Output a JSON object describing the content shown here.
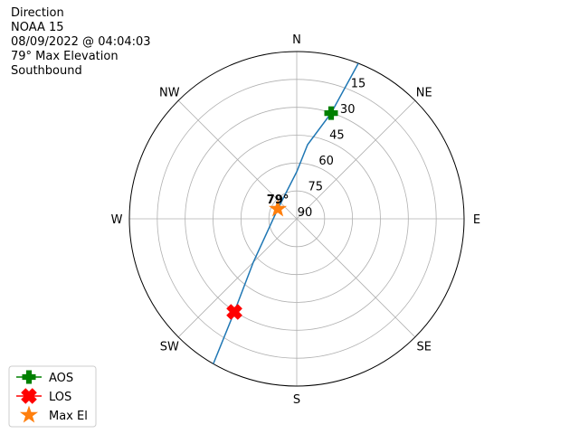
{
  "chart_data": {
    "type": "polar",
    "title": [
      "Direction",
      "NOAA 15",
      "08/09/2022 @ 04:04:03",
      "79° Max Elevation",
      "Southbound"
    ],
    "rlim": [
      90,
      0
    ],
    "rticks": [
      15,
      30,
      45,
      60,
      75,
      90
    ],
    "thetaticks": [
      {
        "value": 0,
        "label": "N"
      },
      {
        "value": 45,
        "label": "NE"
      },
      {
        "value": 90,
        "label": "E"
      },
      {
        "value": 135,
        "label": "SE"
      },
      {
        "value": 180,
        "label": "S"
      },
      {
        "value": 225,
        "label": "SW"
      },
      {
        "value": 270,
        "label": "W"
      },
      {
        "value": 315,
        "label": "NW"
      }
    ],
    "grid": true,
    "legend": "lower left",
    "track": {
      "color": "#1f77b4",
      "azimuth": [
        21.6,
        18,
        8.3,
        0,
        297.6,
        225,
        213.8,
        209.9
      ],
      "elevation": [
        0,
        30.2,
        49.7,
        64.7,
        78.5,
        57,
        29.7,
        0
      ]
    },
    "series": [
      {
        "name": "AOS",
        "marker": "plus",
        "color": "#008000",
        "azimuth": [
          18
        ],
        "elevation": [
          30.2
        ]
      },
      {
        "name": "LOS",
        "marker": "x",
        "color": "#ff0000",
        "azimuth": [
          213.8
        ],
        "elevation": [
          29.7
        ]
      },
      {
        "name": "Max El",
        "marker": "star",
        "color": "#ff7f0e",
        "azimuth": [
          297.6
        ],
        "elevation": [
          78.5
        ]
      }
    ],
    "annotation": {
      "text": "79°",
      "azimuth": 297.6,
      "elevation": 78.5
    }
  }
}
